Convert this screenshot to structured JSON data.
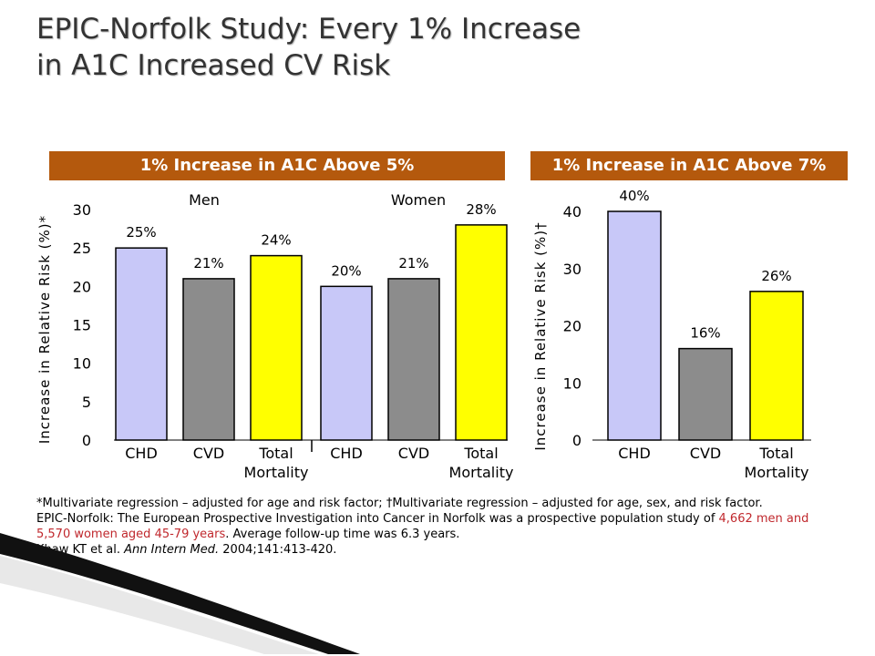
{
  "title": {
    "line1": "EPIC-Norfolk Study: Every 1% Increase",
    "line2": "in A1C Increased CV Risk"
  },
  "banners": {
    "left": "1% Increase in A1C Above 5%",
    "right": "1% Increase in A1C Above 7%"
  },
  "colors": {
    "banner": "#b4590d",
    "chd": "#c8c8f8",
    "cvd": "#8c8c8c",
    "total": "#ffff00",
    "footnote_highlight": "#c0282d"
  },
  "chart_data": [
    {
      "type": "bar",
      "title": "1% Increase in A1C Above 5%",
      "ylabel": "Increase in Relative Risk (%)*",
      "ylim": [
        0,
        30
      ],
      "yticks": [
        "0",
        "5",
        "10",
        "15",
        "20",
        "25",
        "30"
      ],
      "groups": [
        {
          "name": "Men",
          "categories": [
            "CHD",
            "CVD",
            "Total Mortality"
          ],
          "values": [
            25,
            21,
            24
          ],
          "labels": [
            "25%",
            "21%",
            "24%"
          ]
        },
        {
          "name": "Women",
          "categories": [
            "CHD",
            "CVD",
            "Total Mortality"
          ],
          "values": [
            20,
            21,
            28
          ],
          "labels": [
            "20%",
            "21%",
            "28%"
          ]
        }
      ],
      "grid": false
    },
    {
      "type": "bar",
      "title": "1% Increase in A1C Above 7%",
      "ylabel": "Increase in Relative Risk (%)†",
      "ylim": [
        0,
        40
      ],
      "yticks": [
        "0",
        "10",
        "20",
        "30",
        "40"
      ],
      "categories": [
        "CHD",
        "CVD",
        "Total Mortality"
      ],
      "values": [
        40,
        16,
        26
      ],
      "labels": [
        "40%",
        "16%",
        "26%"
      ],
      "grid": false
    }
  ],
  "footnote": {
    "line1": "*Multivariate regression – adjusted for age and risk factor; †Multivariate regression – adjusted for age, sex, and risk factor.",
    "line2a": "EPIC-Norfolk: The European Prospective Investigation into Cancer in Norfolk was a prospective population study of ",
    "line2b": "4,662 men and 5,570 women aged 45-79 years",
    "line2c": ". Average follow-up time was 6.3 years.",
    "line3a": "Khaw KT et al. ",
    "line3b": "Ann Intern Med.",
    "line3c": " 2004;141:413-420."
  }
}
